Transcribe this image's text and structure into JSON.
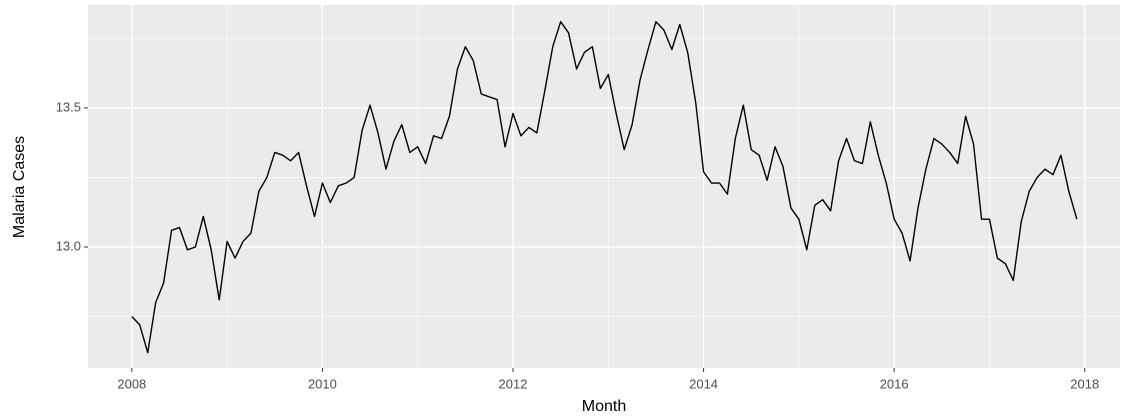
{
  "chart_data": {
    "type": "line",
    "x_label": "Month",
    "y_label": "Malaria Cases",
    "x": [
      2008,
      2008.083,
      2008.167,
      2008.25,
      2008.333,
      2008.417,
      2008.5,
      2008.583,
      2008.667,
      2008.75,
      2008.833,
      2008.917,
      2009,
      2009.083,
      2009.167,
      2009.25,
      2009.333,
      2009.417,
      2009.5,
      2009.583,
      2009.667,
      2009.75,
      2009.833,
      2009.917,
      2010,
      2010.083,
      2010.167,
      2010.25,
      2010.333,
      2010.417,
      2010.5,
      2010.583,
      2010.667,
      2010.75,
      2010.833,
      2010.917,
      2011,
      2011.083,
      2011.167,
      2011.25,
      2011.333,
      2011.417,
      2011.5,
      2011.583,
      2011.667,
      2011.75,
      2011.833,
      2011.917,
      2012,
      2012.083,
      2012.167,
      2012.25,
      2012.333,
      2012.417,
      2012.5,
      2012.583,
      2012.667,
      2012.75,
      2012.833,
      2012.917,
      2013,
      2013.083,
      2013.167,
      2013.25,
      2013.333,
      2013.417,
      2013.5,
      2013.583,
      2013.667,
      2013.75,
      2013.833,
      2013.917,
      2014,
      2014.083,
      2014.167,
      2014.25,
      2014.333,
      2014.417,
      2014.5,
      2014.583,
      2014.667,
      2014.75,
      2014.833,
      2014.917,
      2015,
      2015.083,
      2015.167,
      2015.25,
      2015.333,
      2015.417,
      2015.5,
      2015.583,
      2015.667,
      2015.75,
      2015.833,
      2015.917,
      2016,
      2016.083,
      2016.167,
      2016.25,
      2016.333,
      2016.417,
      2016.5,
      2016.583,
      2016.667,
      2016.75,
      2016.833,
      2016.917,
      2017,
      2017.083,
      2017.167,
      2017.25,
      2017.333,
      2017.417,
      2017.5,
      2017.583,
      2017.667,
      2017.75,
      2017.833,
      2017.917
    ],
    "series": [
      {
        "color": "#000000",
        "values": [
          12.75,
          12.72,
          12.62,
          12.8,
          12.87,
          13.06,
          13.07,
          12.99,
          13.0,
          13.11,
          12.99,
          12.81,
          13.02,
          12.96,
          13.02,
          13.05,
          13.2,
          13.25,
          13.34,
          13.33,
          13.31,
          13.34,
          13.22,
          13.11,
          13.23,
          13.16,
          13.22,
          13.23,
          13.25,
          13.42,
          13.51,
          13.41,
          13.28,
          13.38,
          13.44,
          13.34,
          13.36,
          13.3,
          13.4,
          13.39,
          13.47,
          13.64,
          13.72,
          13.67,
          13.55,
          13.54,
          13.53,
          13.36,
          13.48,
          13.4,
          13.43,
          13.41,
          13.56,
          13.72,
          13.81,
          13.77,
          13.64,
          13.7,
          13.72,
          13.57,
          13.62,
          13.48,
          13.35,
          13.44,
          13.6,
          13.71,
          13.81,
          13.78,
          13.71,
          13.8,
          13.7,
          13.52,
          13.27,
          13.23,
          13.23,
          13.19,
          13.39,
          13.51,
          13.35,
          13.33,
          13.24,
          13.36,
          13.29,
          13.14,
          13.1,
          12.99,
          13.15,
          13.17,
          13.13,
          13.31,
          13.39,
          13.31,
          13.3,
          13.45,
          13.33,
          13.23,
          13.1,
          13.05,
          12.95,
          13.14,
          13.28,
          13.39,
          13.37,
          13.34,
          13.3,
          13.47,
          13.37,
          13.1,
          13.1,
          12.96,
          12.94,
          12.88,
          13.09,
          13.2,
          13.25,
          13.28,
          13.26,
          13.33,
          13.2,
          13.1
        ]
      }
    ],
    "xlim": [
      2007.54,
      2018.37
    ],
    "ylim": [
      12.565,
      13.87
    ],
    "xticks": [
      2008,
      2010,
      2012,
      2014,
      2016,
      2018
    ],
    "yticks": [
      {
        "value": 13.0,
        "label": "13.0"
      },
      13.5
    ],
    "grid": true,
    "minor_grid": true,
    "background": "#ebebeb"
  }
}
